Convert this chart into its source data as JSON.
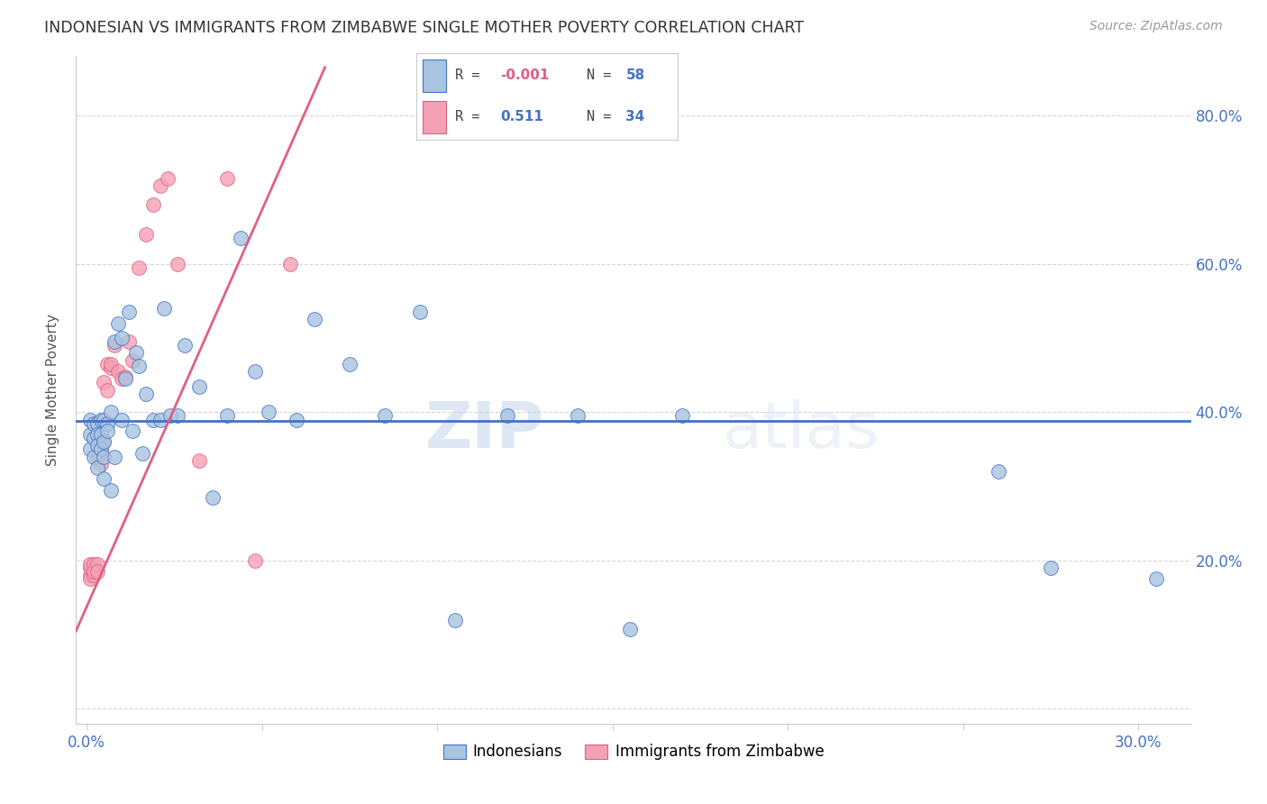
{
  "title": "INDONESIAN VS IMMIGRANTS FROM ZIMBABWE SINGLE MOTHER POVERTY CORRELATION CHART",
  "source": "Source: ZipAtlas.com",
  "xlabel_indonesian": "Indonesians",
  "xlabel_zimbabwe": "Immigrants from Zimbabwe",
  "ylabel": "Single Mother Poverty",
  "xlim": [
    -0.003,
    0.315
  ],
  "ylim": [
    -0.02,
    0.88
  ],
  "r_indonesian": "-0.001",
  "n_indonesian": "58",
  "r_zimbabwe": "0.511",
  "n_zimbabwe": "34",
  "color_indonesian": "#a8c4e0",
  "color_zimbabwe": "#f4a0b5",
  "line_indonesian": "#4472c4",
  "line_zimbabwe": "#e06080",
  "watermark_zip": "ZIP",
  "watermark_atlas": "atlas",
  "indonesian_line_y": 0.388,
  "zimbabwe_line_x0": -0.003,
  "zimbabwe_line_y0": 0.105,
  "zimbabwe_line_x1": 0.068,
  "zimbabwe_line_y1": 0.865,
  "indonesian_x": [
    0.001,
    0.001,
    0.001,
    0.002,
    0.002,
    0.002,
    0.003,
    0.003,
    0.003,
    0.003,
    0.004,
    0.004,
    0.004,
    0.005,
    0.005,
    0.005,
    0.005,
    0.006,
    0.006,
    0.007,
    0.007,
    0.008,
    0.008,
    0.009,
    0.01,
    0.01,
    0.011,
    0.012,
    0.013,
    0.014,
    0.015,
    0.016,
    0.017,
    0.019,
    0.021,
    0.022,
    0.024,
    0.026,
    0.028,
    0.032,
    0.036,
    0.04,
    0.044,
    0.048,
    0.052,
    0.06,
    0.065,
    0.075,
    0.085,
    0.095,
    0.105,
    0.12,
    0.14,
    0.155,
    0.17,
    0.26,
    0.275,
    0.305
  ],
  "indonesian_y": [
    0.39,
    0.37,
    0.35,
    0.385,
    0.365,
    0.34,
    0.385,
    0.37,
    0.355,
    0.325,
    0.39,
    0.37,
    0.35,
    0.39,
    0.36,
    0.34,
    0.31,
    0.385,
    0.375,
    0.4,
    0.295,
    0.495,
    0.34,
    0.52,
    0.39,
    0.5,
    0.445,
    0.535,
    0.375,
    0.48,
    0.462,
    0.345,
    0.425,
    0.39,
    0.39,
    0.54,
    0.395,
    0.395,
    0.49,
    0.434,
    0.285,
    0.395,
    0.635,
    0.455,
    0.4,
    0.39,
    0.525,
    0.465,
    0.395,
    0.535,
    0.12,
    0.395,
    0.395,
    0.108,
    0.395,
    0.32,
    0.19,
    0.175
  ],
  "zimbabwe_x": [
    0.001,
    0.001,
    0.001,
    0.001,
    0.002,
    0.002,
    0.002,
    0.003,
    0.003,
    0.003,
    0.004,
    0.004,
    0.005,
    0.005,
    0.006,
    0.006,
    0.007,
    0.007,
    0.008,
    0.009,
    0.01,
    0.011,
    0.012,
    0.013,
    0.015,
    0.017,
    0.019,
    0.021,
    0.023,
    0.026,
    0.032,
    0.04,
    0.048,
    0.058
  ],
  "zimbabwe_y": [
    0.18,
    0.175,
    0.19,
    0.195,
    0.18,
    0.195,
    0.185,
    0.195,
    0.185,
    0.34,
    0.35,
    0.33,
    0.36,
    0.44,
    0.43,
    0.465,
    0.46,
    0.465,
    0.49,
    0.455,
    0.445,
    0.448,
    0.495,
    0.47,
    0.595,
    0.64,
    0.68,
    0.705,
    0.715,
    0.6,
    0.335,
    0.715,
    0.2,
    0.6
  ]
}
